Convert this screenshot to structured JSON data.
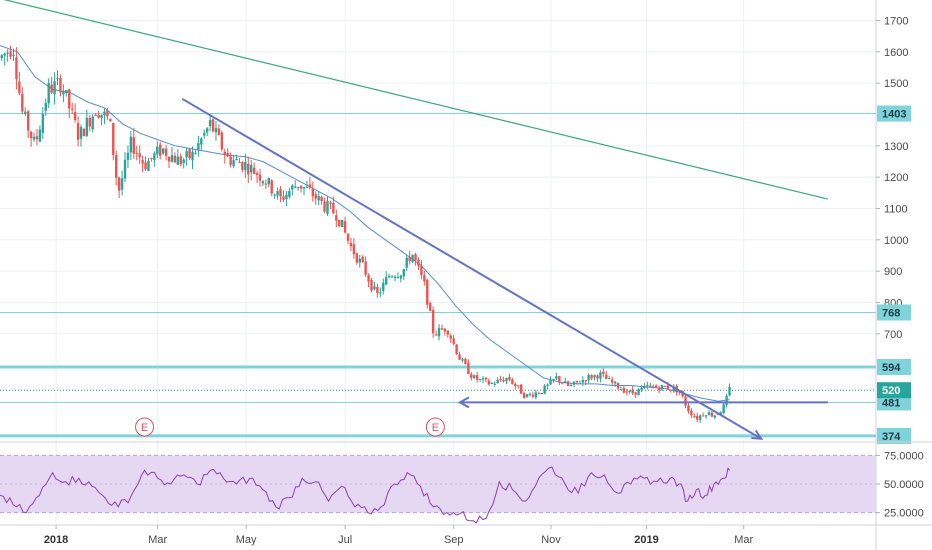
{
  "colors": {
    "up": "#26a69a",
    "down": "#ef5350",
    "sma": "#5b8bd8",
    "trendline": "#6474c4",
    "long_trendline": "#3aa97a",
    "level": "#7fd3da",
    "rsi": "#8e3fb0",
    "rsi_band": "#e6d8f2",
    "badge": "#7fd3da",
    "price_badge": "#26a69a",
    "event": "#e0505a"
  },
  "chart_data": [
    {
      "type": "candlestick",
      "y_ticks": [
        "1700",
        "1600",
        "1500",
        "1403",
        "1300",
        "1200",
        "1100",
        "1000",
        "900",
        "800",
        "768",
        "700",
        "594",
        "520",
        "481",
        "374"
      ],
      "ylim": [
        340,
        1780
      ],
      "xlim": [
        0,
        100
      ],
      "x_ticks": [
        {
          "label": "2018",
          "x": 6.4,
          "year": true
        },
        {
          "label": "Mar",
          "x": 18.0,
          "year": false
        },
        {
          "label": "May",
          "x": 28.1,
          "year": false
        },
        {
          "label": "Jul",
          "x": 39.4,
          "year": false
        },
        {
          "label": "Sep",
          "x": 51.8,
          "year": false
        },
        {
          "label": "Nov",
          "x": 62.9,
          "year": false
        },
        {
          "label": "2019",
          "x": 73.8,
          "year": true
        },
        {
          "label": "Mar",
          "x": 84.9,
          "year": false
        }
      ],
      "levels": [
        {
          "value": 1403,
          "label": "1403",
          "thick": false
        },
        {
          "value": 768,
          "label": "768",
          "thick": false
        },
        {
          "value": 594,
          "label": "594",
          "thick": true
        },
        {
          "value": 481,
          "label": "481",
          "thick": false
        },
        {
          "value": 374,
          "label": "374",
          "thick": true
        }
      ],
      "last_price": {
        "value": 520,
        "label": "520"
      },
      "support_arrow": {
        "value": 481,
        "x_start": 52.5,
        "x_end": 94.5
      },
      "trendlines": [
        {
          "name": "downtrend",
          "from": [
            20.8,
            1450
          ],
          "to": [
            86.9,
            365
          ],
          "arrow": true
        },
        {
          "name": "long-term",
          "from": [
            0.0,
            1770
          ],
          "to": [
            94.5,
            1130
          ],
          "arrow": false
        }
      ],
      "events": [
        {
          "label": "E",
          "x": 16.5
        },
        {
          "label": "E",
          "x": 49.7
        }
      ],
      "keypoints": [
        [
          0.0,
          1580
        ],
        [
          1.5,
          1620
        ],
        [
          2.5,
          1410
        ],
        [
          4.0,
          1300
        ],
        [
          5.5,
          1480
        ],
        [
          7.0,
          1500
        ],
        [
          9.0,
          1330
        ],
        [
          11.0,
          1420
        ],
        [
          12.5,
          1380
        ],
        [
          13.5,
          1150
        ],
        [
          15.0,
          1310
        ],
        [
          16.5,
          1240
        ],
        [
          18.5,
          1290
        ],
        [
          20.5,
          1250
        ],
        [
          22.0,
          1270
        ],
        [
          24.0,
          1370
        ],
        [
          26.0,
          1260
        ],
        [
          28.0,
          1240
        ],
        [
          30.0,
          1200
        ],
        [
          32.0,
          1130
        ],
        [
          34.0,
          1180
        ],
        [
          35.5,
          1150
        ],
        [
          37.0,
          1110
        ],
        [
          38.5,
          1080
        ],
        [
          40.0,
          980
        ],
        [
          41.5,
          910
        ],
        [
          43.0,
          820
        ],
        [
          44.5,
          890
        ],
        [
          46.0,
          900
        ],
        [
          47.0,
          960
        ],
        [
          48.5,
          850
        ],
        [
          49.5,
          700
        ],
        [
          51.0,
          720
        ],
        [
          52.5,
          620
        ],
        [
          54.0,
          560
        ],
        [
          56.0,
          540
        ],
        [
          58.0,
          560
        ],
        [
          60.0,
          500
        ],
        [
          62.0,
          520
        ],
        [
          63.5,
          560
        ],
        [
          65.0,
          530
        ],
        [
          67.0,
          560
        ],
        [
          68.5,
          570
        ],
        [
          70.0,
          540
        ],
        [
          72.0,
          510
        ],
        [
          74.0,
          530
        ],
        [
          76.0,
          530
        ],
        [
          77.5,
          520
        ],
        [
          78.5,
          460
        ],
        [
          79.5,
          430
        ],
        [
          80.5,
          450
        ],
        [
          81.5,
          440
        ],
        [
          82.5,
          460
        ],
        [
          83.3,
          520
        ]
      ],
      "sma_points": [
        [
          0.0,
          1620
        ],
        [
          2.0,
          1600
        ],
        [
          4.0,
          1520
        ],
        [
          6.0,
          1480
        ],
        [
          8.0,
          1470
        ],
        [
          10.0,
          1440
        ],
        [
          12.0,
          1420
        ],
        [
          14.0,
          1370
        ],
        [
          16.0,
          1340
        ],
        [
          18.0,
          1320
        ],
        [
          20.0,
          1300
        ],
        [
          22.0,
          1290
        ],
        [
          24.0,
          1280
        ],
        [
          26.0,
          1270
        ],
        [
          28.0,
          1265
        ],
        [
          30.0,
          1250
        ],
        [
          32.0,
          1220
        ],
        [
          34.0,
          1190
        ],
        [
          36.0,
          1160
        ],
        [
          38.0,
          1130
        ],
        [
          40.0,
          1090
        ],
        [
          42.0,
          1040
        ],
        [
          44.0,
          1000
        ],
        [
          46.0,
          960
        ],
        [
          48.0,
          920
        ],
        [
          50.0,
          860
        ],
        [
          52.0,
          790
        ],
        [
          54.0,
          730
        ],
        [
          56.0,
          680
        ],
        [
          58.0,
          640
        ],
        [
          60.0,
          600
        ],
        [
          62.0,
          560
        ],
        [
          64.0,
          545
        ],
        [
          66.0,
          540
        ],
        [
          68.0,
          540
        ],
        [
          70.0,
          535
        ],
        [
          72.0,
          535
        ],
        [
          74.0,
          530
        ],
        [
          76.0,
          525
        ],
        [
          78.0,
          510
        ],
        [
          80.0,
          495
        ],
        [
          82.0,
          485
        ],
        [
          83.3,
          490
        ]
      ]
    },
    {
      "type": "line",
      "name": "RSI",
      "y_ticks": [
        "75.0000",
        "50.0000",
        "25.0000"
      ],
      "ylim": [
        15,
        85
      ],
      "bands": [
        25,
        75
      ],
      "keypoints": [
        [
          0.0,
          40
        ],
        [
          1.5,
          32
        ],
        [
          3.0,
          25
        ],
        [
          4.5,
          40
        ],
        [
          6.0,
          60
        ],
        [
          7.5,
          52
        ],
        [
          9.0,
          55
        ],
        [
          10.5,
          48
        ],
        [
          12.0,
          38
        ],
        [
          13.5,
          30
        ],
        [
          15.0,
          40
        ],
        [
          16.5,
          62
        ],
        [
          18.0,
          55
        ],
        [
          19.5,
          50
        ],
        [
          21.0,
          58
        ],
        [
          22.5,
          50
        ],
        [
          24.0,
          62
        ],
        [
          25.5,
          55
        ],
        [
          27.0,
          50
        ],
        [
          28.5,
          55
        ],
        [
          30.0,
          45
        ],
        [
          31.5,
          30
        ],
        [
          33.0,
          38
        ],
        [
          34.5,
          55
        ],
        [
          36.0,
          52
        ],
        [
          37.5,
          35
        ],
        [
          39.0,
          48
        ],
        [
          40.5,
          30
        ],
        [
          42.0,
          25
        ],
        [
          43.5,
          30
        ],
        [
          45.0,
          50
        ],
        [
          46.5,
          60
        ],
        [
          48.0,
          48
        ],
        [
          49.5,
          30
        ],
        [
          51.0,
          25
        ],
        [
          52.5,
          24
        ],
        [
          54.0,
          18
        ],
        [
          55.5,
          20
        ],
        [
          57.0,
          52
        ],
        [
          58.5,
          45
        ],
        [
          60.0,
          35
        ],
        [
          61.5,
          55
        ],
        [
          63.0,
          65
        ],
        [
          64.5,
          50
        ],
        [
          66.0,
          42
        ],
        [
          67.5,
          60
        ],
        [
          69.0,
          58
        ],
        [
          70.5,
          42
        ],
        [
          72.0,
          50
        ],
        [
          73.5,
          55
        ],
        [
          75.0,
          52
        ],
        [
          76.5,
          55
        ],
        [
          77.5,
          50
        ],
        [
          78.5,
          35
        ],
        [
          79.5,
          45
        ],
        [
          80.5,
          40
        ],
        [
          81.5,
          50
        ],
        [
          82.5,
          55
        ],
        [
          83.3,
          62
        ]
      ]
    }
  ]
}
